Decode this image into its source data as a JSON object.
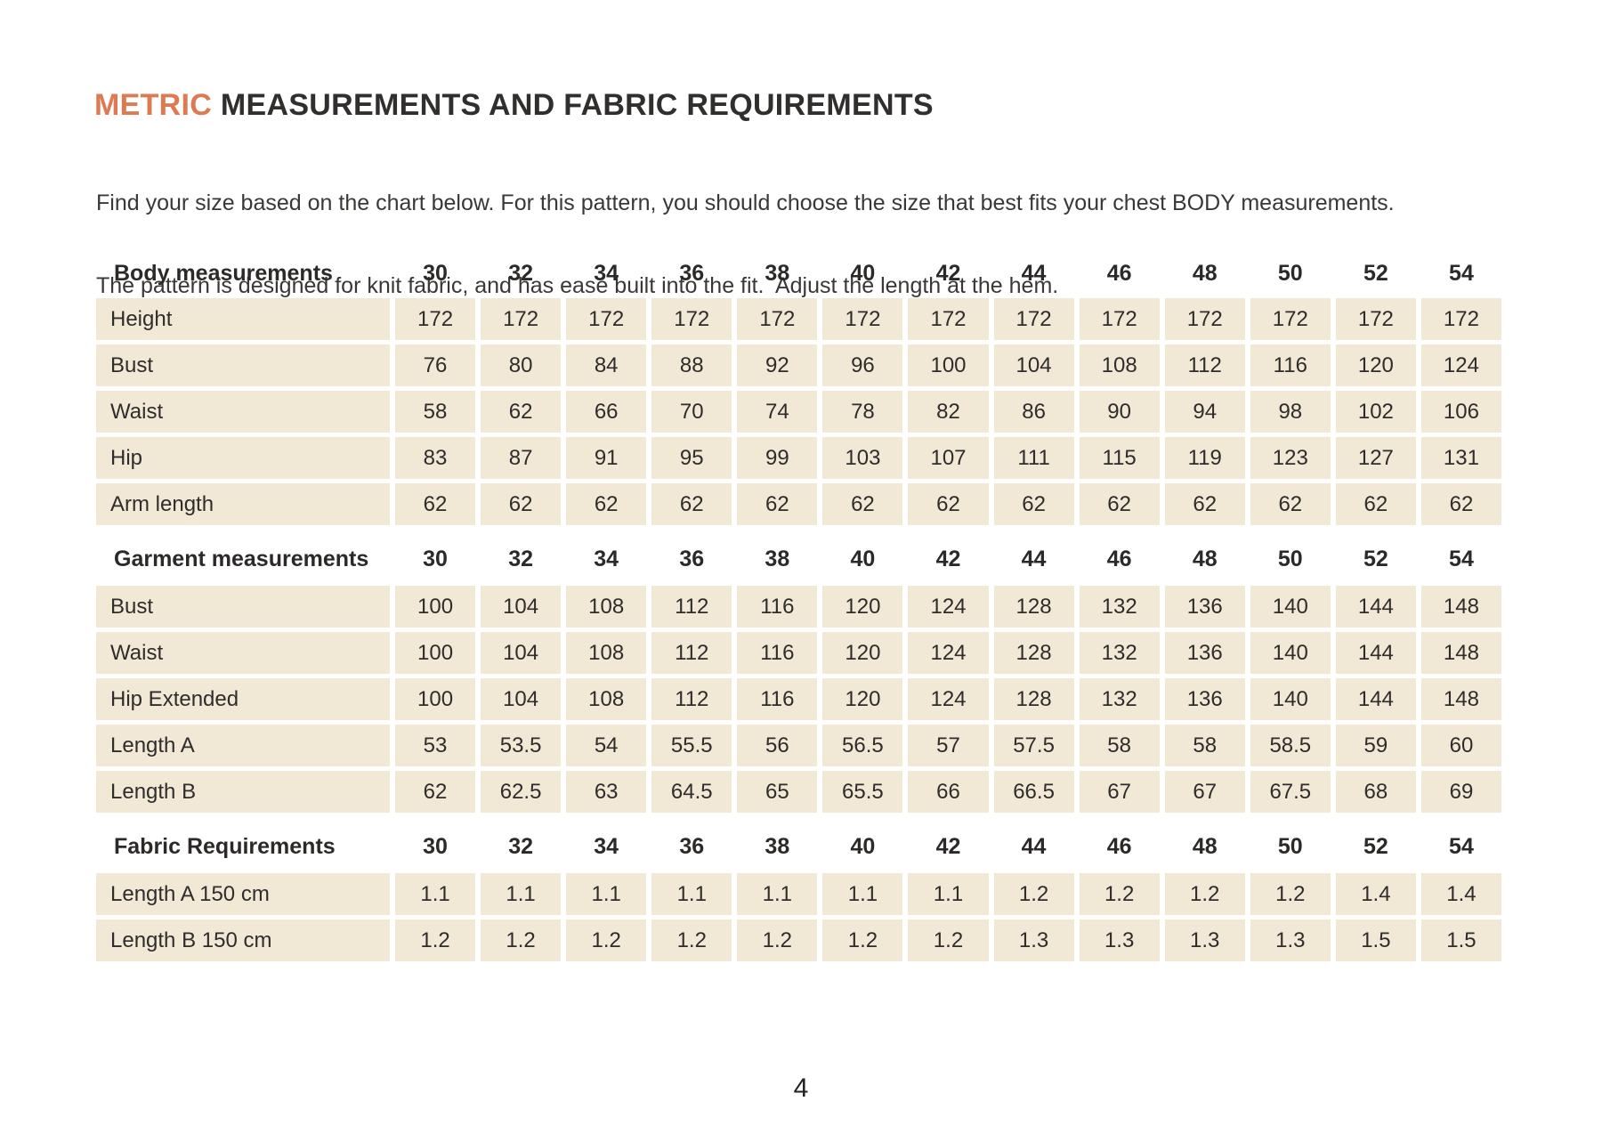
{
  "title": {
    "highlight": "METRIC",
    "rest": " MEASUREMENTS AND FABRIC REQUIREMENTS"
  },
  "intro": {
    "line1": "Find your size based on the chart below. For this pattern, you should choose the size that best fits your chest BODY measurements.",
    "line2": "The pattern is designed for knit fabric, and has ease built into the fit.  Adjust the length at the hem."
  },
  "colors": {
    "accent_orange": "#dd7a52",
    "cell_beige": "#f1e8d6",
    "text_dark": "#2f2d2b"
  },
  "table": {
    "sizes": [
      "30",
      "32",
      "34",
      "36",
      "38",
      "40",
      "42",
      "44",
      "46",
      "48",
      "50",
      "52",
      "54"
    ],
    "sections": [
      {
        "header": "Body measurements",
        "rows": [
          {
            "label": "Height",
            "values": [
              "172",
              "172",
              "172",
              "172",
              "172",
              "172",
              "172",
              "172",
              "172",
              "172",
              "172",
              "172",
              "172"
            ]
          },
          {
            "label": "Bust",
            "values": [
              "76",
              "80",
              "84",
              "88",
              "92",
              "96",
              "100",
              "104",
              "108",
              "112",
              "116",
              "120",
              "124"
            ]
          },
          {
            "label": "Waist",
            "values": [
              "58",
              "62",
              "66",
              "70",
              "74",
              "78",
              "82",
              "86",
              "90",
              "94",
              "98",
              "102",
              "106"
            ]
          },
          {
            "label": "Hip",
            "values": [
              "83",
              "87",
              "91",
              "95",
              "99",
              "103",
              "107",
              "111",
              "115",
              "119",
              "123",
              "127",
              "131"
            ]
          },
          {
            "label": "Arm length",
            "values": [
              "62",
              "62",
              "62",
              "62",
              "62",
              "62",
              "62",
              "62",
              "62",
              "62",
              "62",
              "62",
              "62"
            ]
          }
        ]
      },
      {
        "header": "Garment measurements",
        "rows": [
          {
            "label": "Bust",
            "values": [
              "100",
              "104",
              "108",
              "112",
              "116",
              "120",
              "124",
              "128",
              "132",
              "136",
              "140",
              "144",
              "148"
            ]
          },
          {
            "label": "Waist",
            "values": [
              "100",
              "104",
              "108",
              "112",
              "116",
              "120",
              "124",
              "128",
              "132",
              "136",
              "140",
              "144",
              "148"
            ]
          },
          {
            "label": "Hip Extended",
            "values": [
              "100",
              "104",
              "108",
              "112",
              "116",
              "120",
              "124",
              "128",
              "132",
              "136",
              "140",
              "144",
              "148"
            ]
          },
          {
            "label": "Length A",
            "values": [
              "53",
              "53.5",
              "54",
              "55.5",
              "56",
              "56.5",
              "57",
              "57.5",
              "58",
              "58",
              "58.5",
              "59",
              "60"
            ]
          },
          {
            "label": "Length B",
            "values": [
              "62",
              "62.5",
              "63",
              "64.5",
              "65",
              "65.5",
              "66",
              "66.5",
              "67",
              "67",
              "67.5",
              "68",
              "69"
            ]
          }
        ]
      },
      {
        "header": "Fabric Requirements",
        "rows": [
          {
            "label": "Length A 150 cm",
            "values": [
              "1.1",
              "1.1",
              "1.1",
              "1.1",
              "1.1",
              "1.1",
              "1.1",
              "1.2",
              "1.2",
              "1.2",
              "1.2",
              "1.4",
              "1.4"
            ]
          },
          {
            "label": "Length B 150 cm",
            "values": [
              "1.2",
              "1.2",
              "1.2",
              "1.2",
              "1.2",
              "1.2",
              "1.2",
              "1.3",
              "1.3",
              "1.3",
              "1.3",
              "1.5",
              "1.5"
            ]
          }
        ]
      }
    ]
  },
  "footer": {
    "page_number": "4"
  }
}
